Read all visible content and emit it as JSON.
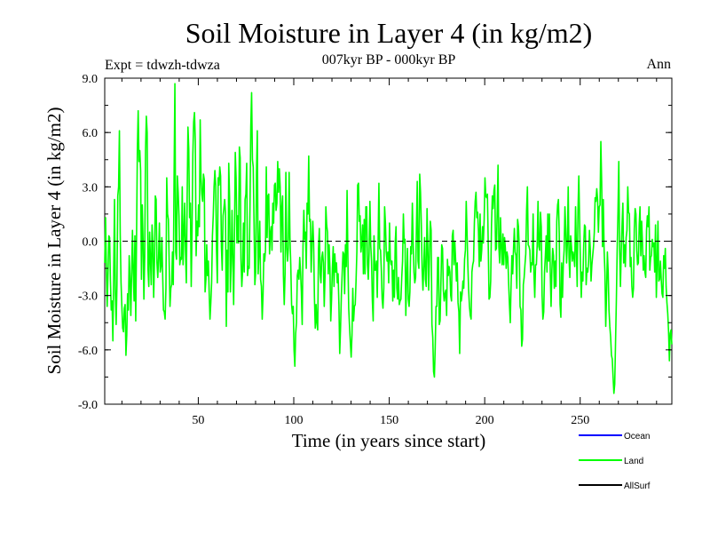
{
  "chart_data": {
    "type": "line",
    "title": "Soil Moisture in Layer 4 (in kg/m2)",
    "subtitle": "007kyr BP - 000kyr BP",
    "expt_label": "Expt = tdwzh-tdwza",
    "season_label": "Ann",
    "xlabel": "Time (in years since start)",
    "ylabel": "Soil Moisture in Layer 4 (in kg/m2)",
    "xlim": [
      1,
      298
    ],
    "ylim": [
      -9.0,
      9.0
    ],
    "xticks": [
      50,
      100,
      150,
      200,
      250
    ],
    "yticks": [
      "-9.0",
      "-6.0",
      "-3.0",
      "0.0",
      "3.0",
      "6.0",
      "9.0"
    ],
    "zero_line": true,
    "legend_position": "bottom-right",
    "series": [
      {
        "name": "Ocean",
        "color": "#0000ff",
        "values": []
      },
      {
        "name": "Land",
        "color": "#00ff00",
        "x_start": 1,
        "values": [
          -1.2,
          1.3,
          -1.5,
          -3.6,
          -1.8,
          0.3,
          0.2,
          -2.2,
          -3.8,
          -3.3,
          -5.5,
          -1.8,
          2.3,
          -2.8,
          -4.6,
          -2.4,
          2.5,
          3.0,
          6.1,
          0.4,
          -2.3,
          -3.6,
          -4.8,
          -5.0,
          -3.7,
          -3.5,
          -6.3,
          -5.2,
          -2.9,
          -3.8,
          -0.8,
          -2.1,
          -4.1,
          -1.7,
          0.6,
          -1.8,
          -3.3,
          0.3,
          -4.4,
          0.2,
          5.1,
          7.2,
          4.4,
          5.0,
          3.9,
          -2.1,
          2.0,
          0.1,
          -3.2,
          -0.9,
          5.0,
          6.9,
          6.0,
          -1.5,
          -2.5,
          0.5,
          -1.0,
          -2.4,
          0.9,
          -0.2,
          -3.1,
          -1.1,
          2.5,
          2.3,
          -1.2,
          -2.0,
          -0.9,
          1.0,
          -1.7,
          -1.4,
          0.2,
          -1.8,
          -3.8,
          -3.9,
          -4.3,
          -2.6,
          3.5,
          1.5,
          1.2,
          -1.2,
          -3.6,
          -2.6,
          -2.4,
          -0.6,
          -2.4,
          3.6,
          8.7,
          -0.6,
          -1.0,
          3.6,
          2.7,
          1.4,
          -1.3,
          -0.9,
          -1.0,
          3.0,
          -1.3,
          0.5,
          2.1,
          -0.6,
          -2.3,
          2.3,
          6.3,
          5.1,
          1.3,
          2.1,
          -2.5,
          0.6,
          4.8,
          6.6,
          7.1,
          5.5,
          -0.8,
          1.1,
          0.3,
          2.0,
          0.8,
          6.7,
          3.5,
          2.6,
          2.2,
          3.7,
          3.4,
          -2.8,
          -2.1,
          -0.2,
          -1.9,
          -1.1,
          -2.8,
          -4.3,
          -3.4,
          -2.3,
          0.3,
          1.4,
          3.0,
          3.9,
          3.1,
          -0.5,
          -2.3,
          3.5,
          3.1,
          4.1,
          3.6,
          -0.3,
          -1.6,
          1.4,
          1.8,
          2.3,
          1.6,
          -4.7,
          -0.5,
          -2.8,
          4.3,
          2.4,
          -2.8,
          -1.2,
          1.7,
          -1.0,
          -3.5,
          0.3,
          4.9,
          3.5,
          -0.1,
          1.4,
          -0.1,
          5.2,
          4.6,
          -1.0,
          -2.5,
          -1.6,
          1.0,
          -1.7,
          2.3,
          2.6,
          4.3,
          -1.9,
          -1.4,
          -1.5,
          1.8,
          6.3,
          8.2,
          4.5,
          4.1,
          1.0,
          -2.4,
          -1.7,
          3.8,
          6.1,
          -1.8,
          -0.7,
          1.1,
          -2.1,
          -2.5,
          -4.3,
          -3.0,
          -0.7,
          -1.1,
          -0.5,
          4.1,
          0.2,
          2.5,
          2.6,
          -0.7,
          0.4,
          0.8,
          -0.5,
          2.1,
          1.0,
          3.1,
          3.2,
          1.7,
          2.1,
          4.4,
          2.7,
          4.0,
          3.0,
          -0.6,
          1.9,
          2.5,
          -1.9,
          -3.5,
          -1.8,
          3.8,
          -0.3,
          -1.1,
          -0.4,
          3.8,
          0.2,
          -1.3,
          -3.5,
          -4.0,
          -3.6,
          -6.0,
          -6.9,
          -5.1,
          -4.5,
          -1.9,
          -1.6,
          -2.1,
          -0.9,
          -1.7,
          -2.8,
          -4.6,
          -0.3,
          1.7,
          0.1,
          0.5,
          -1.5,
          2.1,
          1.5,
          4.7,
          1.1,
          1.2,
          -1.7,
          -0.1,
          1.1,
          -0.1,
          -3.1,
          -4.8,
          -3.5,
          -4.5,
          -4.9,
          -0.4,
          0.7,
          -1.8,
          -2.3,
          -0.9,
          -0.6,
          -1.2,
          -3.6,
          -1.9,
          1.9,
          0.9,
          0.5,
          -1.8,
          -0.2,
          -1.5,
          -4.4,
          -3.2,
          -1.5,
          -0.3,
          -2.5,
          -0.7,
          -1.7,
          -1.2,
          -2.3,
          -1.8,
          -3.5,
          -6.2,
          -4.8,
          -3.0,
          -1.8,
          -0.6,
          -0.7,
          -2.9,
          -0.2,
          -1.4,
          2.8,
          -0.9,
          -3.7,
          -4.7,
          -5.6,
          -6.4,
          -5.2,
          -2.6,
          -4.4,
          -3.6,
          -3.5,
          -2.2,
          -0.6,
          3.1,
          3.2,
          1.1,
          1.4,
          -0.6,
          -0.1,
          0.9,
          -1.8,
          1.2,
          -1.8,
          1.9,
          1.9,
          -1.3,
          -2.1,
          -0.6,
          2.2,
          -0.2,
          -1.1,
          -3.3,
          -4.4,
          0.3,
          -1.6,
          -1.6,
          -1.1,
          -3.1,
          -0.2,
          3.2,
          -0.4,
          -0.5,
          -1.6,
          -3.2,
          -3.7,
          -2.6,
          1.9,
          1.0,
          -0.6,
          -1.1,
          -0.6,
          -2.3,
          1.0,
          -1.0,
          -1.3,
          -1.1,
          -3.3,
          -1.6,
          -3.1,
          -0.1,
          0.8,
          -2.6,
          -3.2,
          -2.0,
          -3.5,
          -3.3,
          -3.2,
          -2.0,
          -1.1,
          1.5,
          -0.1,
          0.1,
          -4.1,
          -2.0,
          -0.4,
          -3.2,
          -3.6,
          -2.8,
          -0.3,
          -0.7,
          2.1,
          -0.1,
          -1.7,
          -2.3,
          -2.0,
          0.7,
          3.3,
          -1.1,
          -1.5,
          3.7,
          2.7,
          0.9,
          -1.6,
          -2.7,
          -1.3,
          0.2,
          -2.1,
          -2.5,
          1.8,
          -0.4,
          -2.7,
          -0.8,
          1.1,
          0.6,
          -4.6,
          -5.3,
          -7.2,
          -7.5,
          -5.9,
          -3.6,
          -3.6,
          -0.9,
          -0.9,
          -4.6,
          -4.4,
          -2.3,
          -0.2,
          -0.4,
          -2.7,
          -3.3,
          -2.9,
          -2.7,
          -4.1,
          -1.0,
          -1.9,
          -1.4,
          -1.7,
          -3.0,
          -3.3,
          0.3,
          0.6,
          -1.3,
          0.0,
          -1.0,
          -2.2,
          -1.2,
          -3.4,
          -3.9,
          -6.2,
          -2.8,
          -3.3,
          -2.9,
          -2.2,
          -2.6,
          -1.0,
          -0.5,
          2.2,
          0.5,
          -1.3,
          -2.7,
          -3.6,
          -4.1,
          -4.3,
          -1.7,
          -1.3,
          -1.1,
          1.0,
          2.2,
          2.7,
          1.3,
          1.6,
          0.6,
          -1.4,
          1.5,
          -1.1,
          -0.5,
          0.8,
          -0.1,
          1.2,
          3.5,
          2.5,
          2.4,
          2.6,
          -0.2,
          -3.2,
          -3.1,
          -2.2,
          0.9,
          2.5,
          1.8,
          2.8,
          3.1,
          -0.5,
          -0.4,
          1.6,
          4.2,
          -0.3,
          -1.2,
          1.3,
          -0.3,
          -1.3,
          0.4,
          -1.3,
          0.2,
          -0.4,
          -1.5,
          -0.6,
          -0.9,
          -2.3,
          -3.5,
          -4.5,
          -2.4,
          -0.8,
          -1.8,
          -0.4,
          0.7,
          -0.6,
          -0.8,
          -2.6,
          1.2,
          0.8,
          -0.3,
          -3.6,
          -3.8,
          -5.8,
          -5.4,
          -2.4,
          -2.0,
          -1.3,
          -0.7,
          1.7,
          3.0,
          -0.2,
          -0.3,
          -0.5,
          -1.7,
          -1.2,
          -1.3,
          1.5,
          -1.8,
          -3.1,
          -1.3,
          -1.3,
          -0.2,
          2.2,
          -0.3,
          -0.5,
          1.6,
          0.8,
          -3.0,
          -4.3,
          -3.9,
          -1.7,
          -0.8,
          0.3,
          -1.7,
          1.5,
          -1.1,
          1.5,
          -1.7,
          -3.6,
          -1.6,
          -0.4,
          -0.8,
          -2.6,
          -1.1,
          -2.5,
          1.1,
          2.0,
          2.3,
          0.4,
          -3.5,
          -4.2,
          -1.2,
          -3.1,
          -1.3,
          -0.5,
          1.9,
          0.6,
          -1.2,
          -0.1,
          3.0,
          -0.9,
          -2.0,
          0.3,
          -0.3,
          -1.1,
          -0.6,
          -0.9,
          -1.4,
          1.9,
          -0.4,
          -2.5,
          1.7,
          3.6,
          1.1,
          -1.3,
          -3.1,
          -1.7,
          -2.2,
          -0.2,
          0.9,
          0.8,
          -2.4,
          -1.5,
          -1.7,
          -1.1,
          0.6,
          -0.4,
          -2.2,
          -1.3,
          -0.8,
          -0.3,
          0.5,
          2.4,
          2.2,
          2.9,
          2.3,
          0.5,
          1.9,
          2.0,
          5.5,
          3.3,
          -0.3,
          2.3,
          -0.5,
          -1.7,
          -4.7,
          -2.9,
          -0.6,
          -1.7,
          -3.8,
          -4.7,
          -5.3,
          -6.3,
          -6.5,
          -7.5,
          -8.4,
          -7.9,
          -5.6,
          -3.3,
          -0.5,
          1.6,
          4.4,
          -0.4,
          -2.5,
          -0.6,
          0.9,
          2.1,
          -1.2,
          -0.2,
          -1.4,
          0.2,
          0.6,
          3.0,
          1.6,
          1.5,
          -1.4,
          -0.9,
          -2.5,
          -3.1,
          -2.6,
          0.7,
          1.8,
          1.5,
          -0.5,
          -1.3,
          -1.2,
          0.9,
          1.9,
          -0.8,
          1.1,
          -0.1,
          -1.6,
          -0.8,
          -1.7,
          -2.0,
          0.6,
          1.4,
          0.8,
          1.9,
          -1.6,
          -0.9,
          -0.8,
          0.1,
          -0.3,
          -0.1,
          -1.7,
          0.9,
          -3.1,
          -1.3,
          1.1,
          -2.2,
          -2.1,
          -1.1,
          -2.1,
          -2.9,
          -3.1,
          -0.8,
          -1.5,
          -0.4,
          -2.5,
          -3.4,
          -4.0,
          -5.0,
          -6.6,
          -5.1,
          -4.9,
          -5.7
        ]
      },
      {
        "name": "AllSurf",
        "color": "#000000",
        "values": []
      }
    ]
  }
}
